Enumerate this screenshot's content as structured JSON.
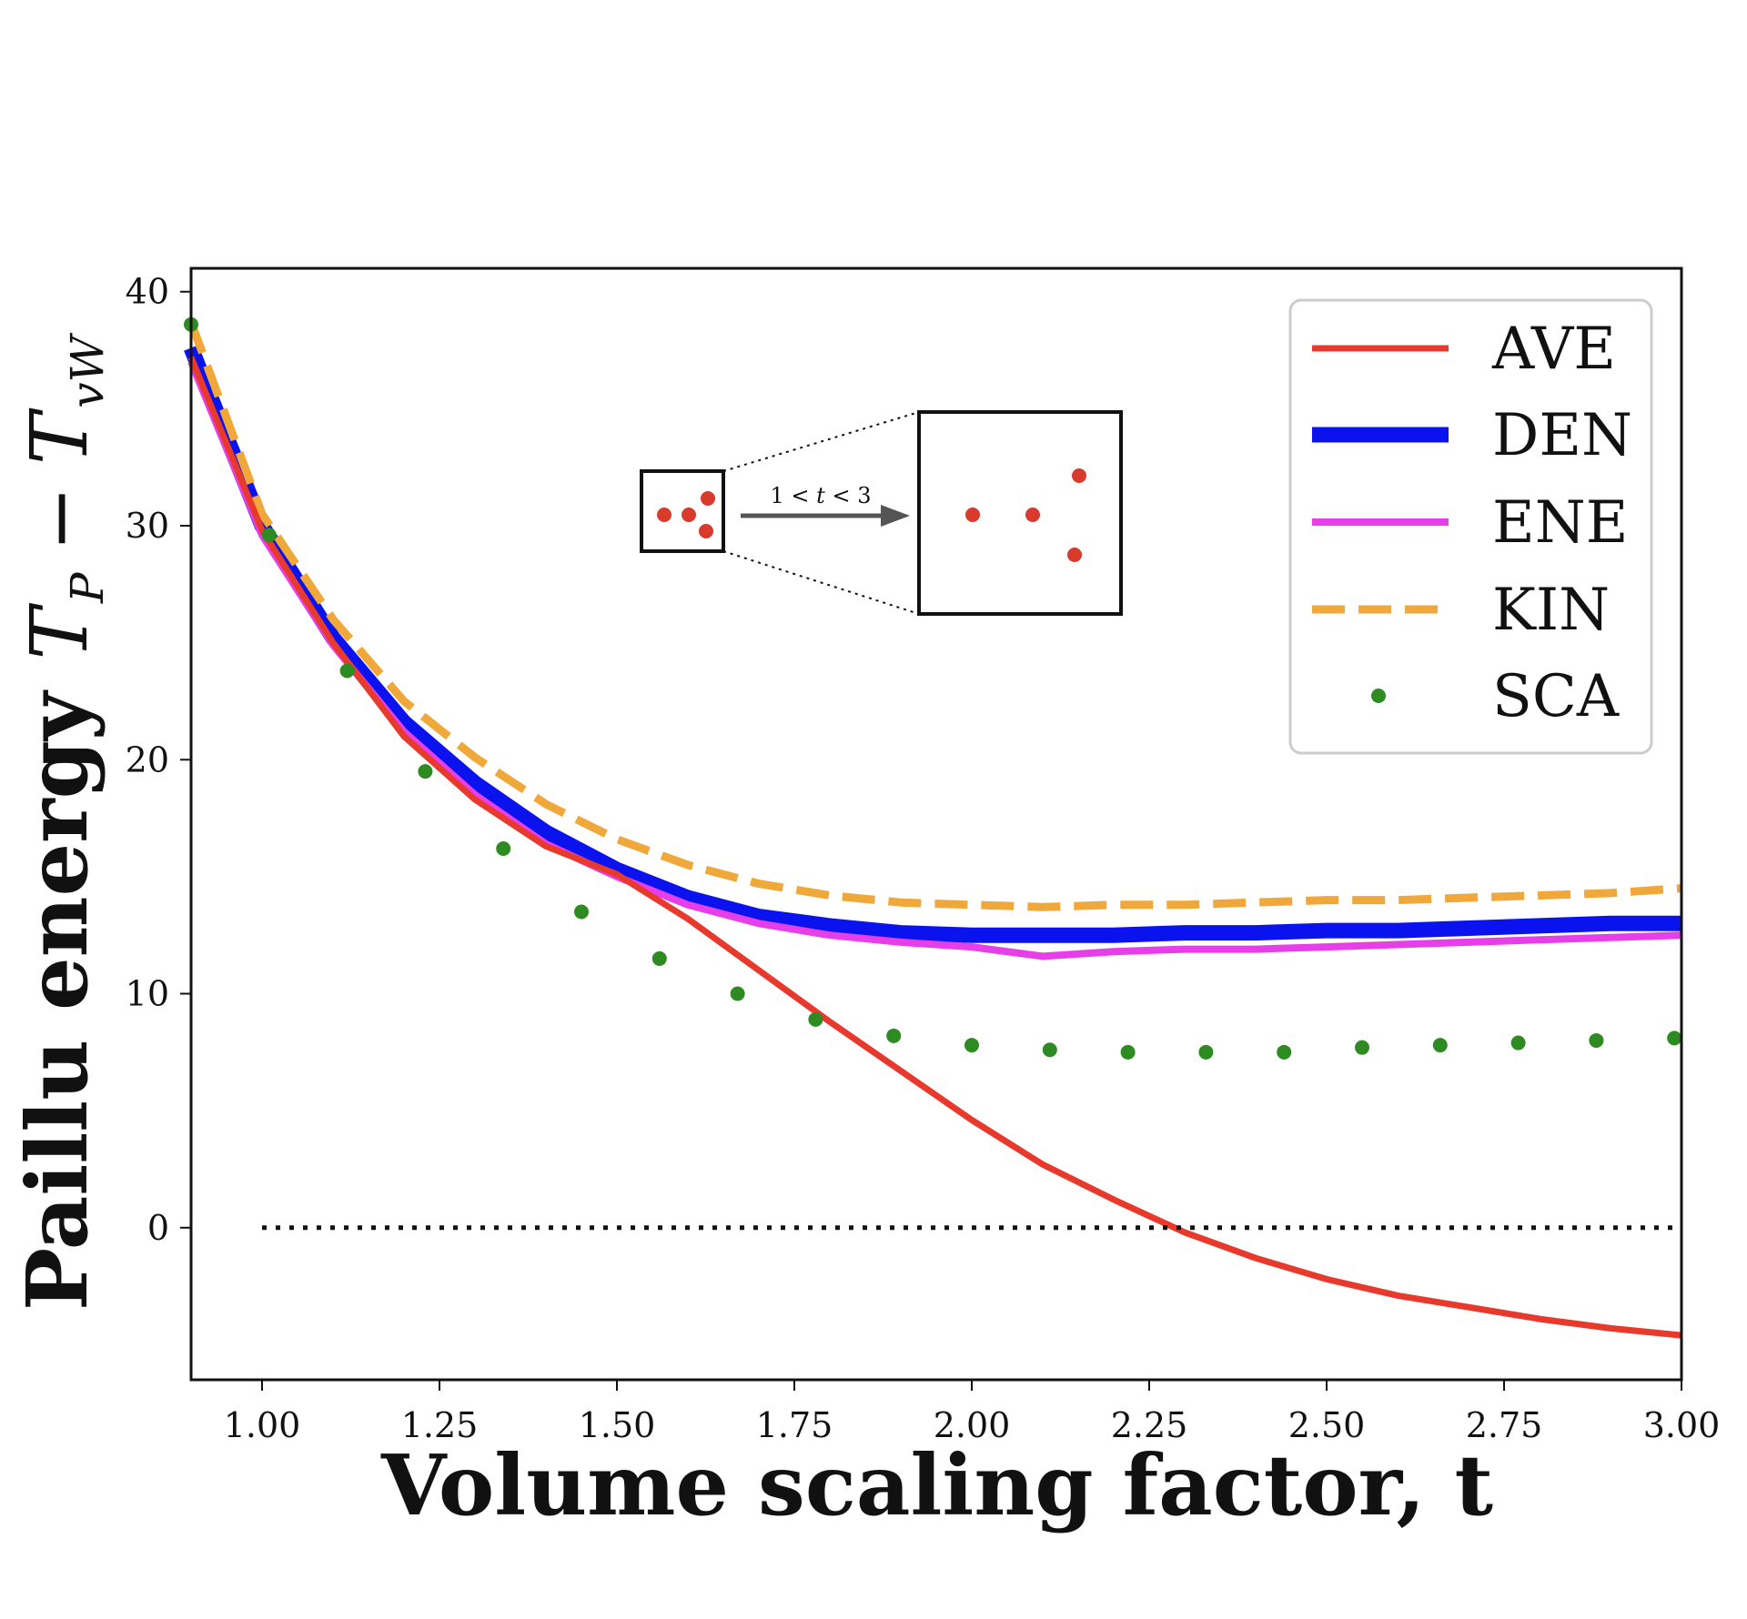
{
  "chart_data": {
    "type": "line",
    "title": "",
    "xlabel": "Volume scaling factor, t",
    "ylabel_text": "Paillu energy",
    "ylabel_math": {
      "T1": "T",
      "sub1": "P",
      "minus": "−",
      "T2": "T",
      "sub2": "vW"
    },
    "xlim": [
      0.9,
      3.0
    ],
    "ylim": [
      -6.5,
      41
    ],
    "xticks": [
      "1.00",
      "1.25",
      "1.50",
      "1.75",
      "2.00",
      "2.25",
      "2.50",
      "2.75",
      "3.00"
    ],
    "yticks": [
      "0",
      "10",
      "20",
      "30",
      "40"
    ],
    "grid": false,
    "legend_position": "top-right",
    "x": [
      0.9,
      1.0,
      1.1,
      1.2,
      1.3,
      1.4,
      1.5,
      1.6,
      1.7,
      1.8,
      1.9,
      2.0,
      2.1,
      2.2,
      2.3,
      2.4,
      2.5,
      2.6,
      2.7,
      2.8,
      2.9,
      3.0
    ],
    "series": [
      {
        "name": "AVE",
        "color": "#e8392d",
        "style": "solid",
        "x": [
          0.9,
          1.0,
          1.1,
          1.2,
          1.3,
          1.4,
          1.5,
          1.6,
          1.7,
          1.8,
          1.9,
          2.0,
          2.1,
          2.2,
          2.3,
          2.4,
          2.5,
          2.6,
          2.7,
          2.8,
          2.9,
          3.0
        ],
        "values": [
          37.2,
          29.8,
          25.0,
          21.0,
          18.3,
          16.3,
          15.1,
          13.2,
          11.0,
          8.8,
          6.7,
          4.6,
          2.7,
          1.2,
          -0.2,
          -1.3,
          -2.2,
          -2.9,
          -3.4,
          -3.9,
          -4.3,
          -4.6
        ]
      },
      {
        "name": "DEN",
        "color": "#0a13ee",
        "style": "solid",
        "x": [
          0.9,
          1.0,
          1.1,
          1.2,
          1.3,
          1.4,
          1.5,
          1.6,
          1.7,
          1.8,
          1.9,
          2.0,
          2.1,
          2.2,
          2.3,
          2.4,
          2.5,
          2.6,
          2.7,
          2.8,
          2.9,
          3.0
        ],
        "values": [
          37.6,
          30.0,
          25.2,
          21.6,
          19.0,
          16.9,
          15.3,
          14.1,
          13.3,
          12.9,
          12.6,
          12.5,
          12.5,
          12.5,
          12.6,
          12.6,
          12.7,
          12.7,
          12.8,
          12.9,
          13.0,
          13.0
        ]
      },
      {
        "name": "ENE",
        "color": "#e63fea",
        "style": "solid",
        "x": [
          0.9,
          1.0,
          1.1,
          1.2,
          1.3,
          1.4,
          1.5,
          1.6,
          1.7,
          1.8,
          1.9,
          2.0,
          2.1,
          2.2,
          2.3,
          2.4,
          2.5,
          2.6,
          2.7,
          2.8,
          2.9,
          3.0
        ],
        "values": [
          37.0,
          29.6,
          24.9,
          21.2,
          18.5,
          16.4,
          15.0,
          13.8,
          13.0,
          12.5,
          12.2,
          12.0,
          11.6,
          11.8,
          11.9,
          11.9,
          12.0,
          12.1,
          12.2,
          12.3,
          12.4,
          12.5
        ]
      },
      {
        "name": "KIN",
        "color": "#f0a83a",
        "style": "dashed",
        "x": [
          0.9,
          1.0,
          1.1,
          1.2,
          1.3,
          1.4,
          1.5,
          1.6,
          1.7,
          1.8,
          1.9,
          2.0,
          2.1,
          2.2,
          2.3,
          2.4,
          2.5,
          2.6,
          2.7,
          2.8,
          2.9,
          3.0
        ],
        "values": [
          38.7,
          30.5,
          26.0,
          22.5,
          20.1,
          18.1,
          16.6,
          15.5,
          14.7,
          14.2,
          13.9,
          13.8,
          13.7,
          13.8,
          13.8,
          13.9,
          14.0,
          14.0,
          14.1,
          14.2,
          14.3,
          14.5
        ]
      },
      {
        "name": "SCA",
        "color": "#2e8b22",
        "style": "dots",
        "x": [
          0.9,
          1.01,
          1.12,
          1.23,
          1.34,
          1.45,
          1.56,
          1.67,
          1.78,
          1.89,
          2.0,
          2.11,
          2.22,
          2.33,
          2.44,
          2.55,
          2.66,
          2.77,
          2.88,
          2.99
        ],
        "values": [
          38.6,
          29.6,
          23.8,
          19.5,
          16.2,
          13.5,
          11.5,
          10.0,
          8.9,
          8.2,
          7.8,
          7.6,
          7.5,
          7.5,
          7.5,
          7.7,
          7.8,
          7.9,
          8.0,
          8.1
        ]
      }
    ],
    "reference_line": {
      "y": 0,
      "x_start": 1.0,
      "x_end": 3.0,
      "color": "#111111",
      "style": "dotted"
    },
    "inset": {
      "label_left": "1 <",
      "label_var": "t",
      "label_right": "< 3",
      "dot_color": "#d83a2c",
      "arrow_color": "#555555"
    }
  }
}
